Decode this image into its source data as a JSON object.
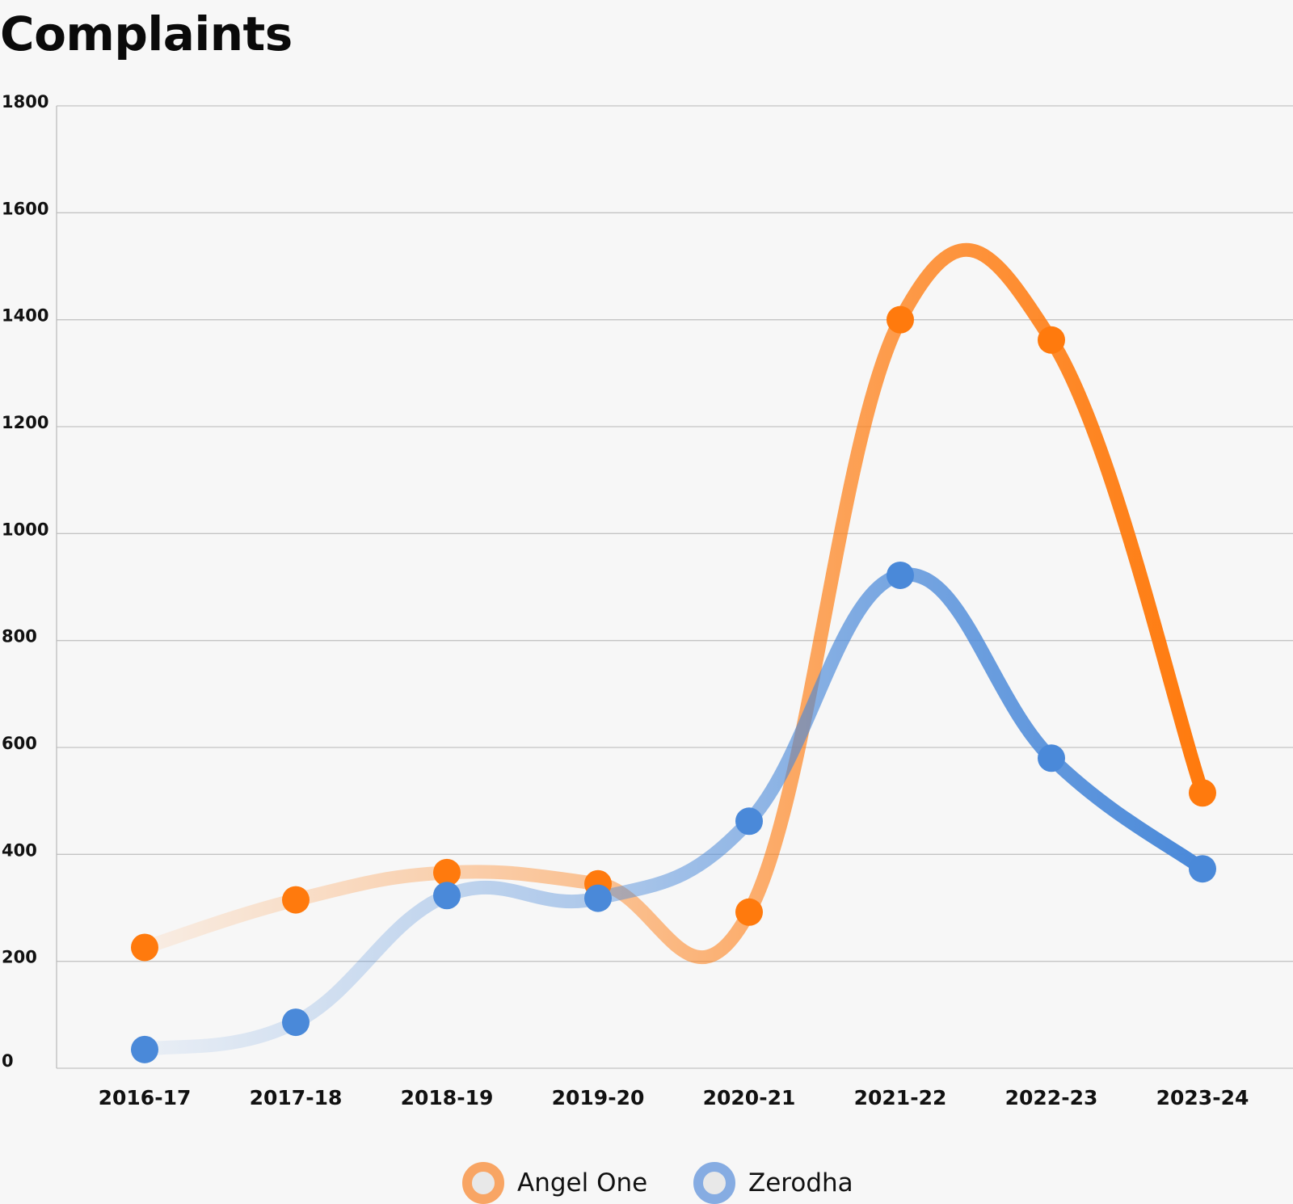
{
  "title": "Complaints",
  "chart_data": {
    "type": "line",
    "title": "Complaints",
    "xlabel": "",
    "ylabel": "",
    "categories": [
      "2016-17",
      "2017-18",
      "2018-19",
      "2019-20",
      "2020-21",
      "2021-22",
      "2022-23",
      "2023-24"
    ],
    "ylim": [
      0,
      1800
    ],
    "yticks": [
      0,
      200,
      400,
      600,
      800,
      1000,
      1200,
      1400,
      1600,
      1800
    ],
    "grid": true,
    "legend_position": "bottom",
    "series": [
      {
        "name": "Angel One",
        "color": "#ff7a0d",
        "values": [
          226,
          315,
          366,
          345,
          292,
          1400,
          1362,
          515
        ]
      },
      {
        "name": "Zerodha",
        "color": "#4a89d9",
        "values": [
          35,
          86,
          323,
          318,
          462,
          922,
          580,
          373
        ]
      }
    ]
  }
}
